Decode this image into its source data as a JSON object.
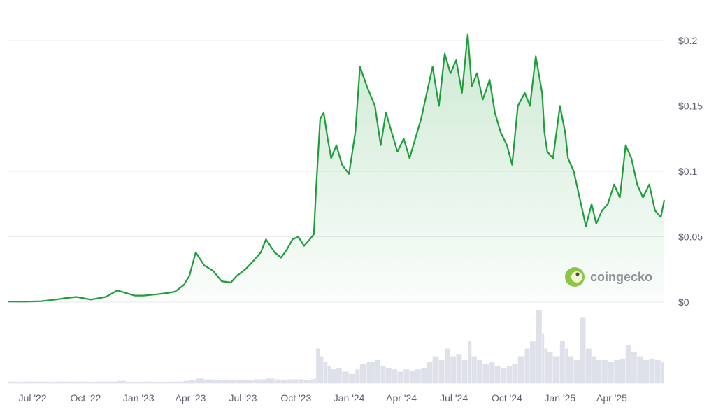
{
  "chart_data": {
    "type": "area",
    "title": "",
    "xlabel": "",
    "ylabel": "",
    "series": [
      {
        "x": [
          "2022-05-20",
          "2022-06-15",
          "2022-07-15",
          "2022-08-10",
          "2022-08-25",
          "2022-09-15",
          "2022-10-10",
          "2022-11-05",
          "2022-11-25",
          "2022-12-10",
          "2022-12-25",
          "2023-01-10",
          "2023-02-01",
          "2023-02-20",
          "2023-03-05",
          "2023-03-20",
          "2023-03-30",
          "2023-04-10",
          "2023-04-25",
          "2023-05-10",
          "2023-05-25",
          "2023-06-10",
          "2023-06-20",
          "2023-07-05",
          "2023-07-20",
          "2023-08-01",
          "2023-08-10",
          "2023-08-25",
          "2023-09-05",
          "2023-09-15",
          "2023-09-25",
          "2023-10-05",
          "2023-10-15",
          "2023-10-25",
          "2023-11-01",
          "2023-11-05",
          "2023-11-12",
          "2023-11-18",
          "2023-11-25",
          "2023-12-01",
          "2023-12-10",
          "2023-12-20",
          "2024-01-01",
          "2024-01-12",
          "2024-01-20",
          "2024-02-01",
          "2024-02-15",
          "2024-02-25",
          "2024-03-05",
          "2024-03-15",
          "2024-03-25",
          "2024-04-05",
          "2024-04-15",
          "2024-04-25",
          "2024-05-05",
          "2024-05-15",
          "2024-05-25",
          "2024-06-05",
          "2024-06-15",
          "2024-06-25",
          "2024-07-05",
          "2024-07-15",
          "2024-07-25",
          "2024-08-01",
          "2024-08-10",
          "2024-08-20",
          "2024-09-01",
          "2024-09-10",
          "2024-09-20",
          "2024-10-01",
          "2024-10-10",
          "2024-10-20",
          "2024-11-01",
          "2024-11-10",
          "2024-11-20",
          "2024-12-01",
          "2024-12-05",
          "2024-12-10",
          "2024-12-20",
          "2025-01-01",
          "2025-01-10",
          "2025-01-15",
          "2025-01-25",
          "2025-02-05",
          "2025-02-15",
          "2025-02-25",
          "2025-03-05",
          "2025-03-15",
          "2025-03-25",
          "2025-04-05",
          "2025-04-15",
          "2025-04-25",
          "2025-05-05",
          "2025-05-15",
          "2025-05-25",
          "2025-06-05",
          "2025-06-15",
          "2025-06-25",
          "2025-07-01"
        ],
        "y": [
          0.0005,
          0.0004,
          0.0007,
          0.002,
          0.003,
          0.004,
          0.002,
          0.004,
          0.009,
          0.007,
          0.005,
          0.005,
          0.006,
          0.007,
          0.008,
          0.013,
          0.02,
          0.038,
          0.028,
          0.024,
          0.016,
          0.015,
          0.02,
          0.025,
          0.032,
          0.038,
          0.048,
          0.038,
          0.034,
          0.04,
          0.048,
          0.05,
          0.043,
          0.048,
          0.052,
          0.088,
          0.14,
          0.145,
          0.125,
          0.11,
          0.12,
          0.105,
          0.098,
          0.13,
          0.18,
          0.165,
          0.15,
          0.12,
          0.145,
          0.13,
          0.115,
          0.125,
          0.11,
          0.125,
          0.14,
          0.16,
          0.18,
          0.15,
          0.19,
          0.175,
          0.185,
          0.16,
          0.205,
          0.165,
          0.175,
          0.155,
          0.17,
          0.145,
          0.13,
          0.12,
          0.105,
          0.15,
          0.16,
          0.15,
          0.188,
          0.16,
          0.13,
          0.115,
          0.11,
          0.15,
          0.13,
          0.11,
          0.1,
          0.078,
          0.058,
          0.075,
          0.06,
          0.07,
          0.075,
          0.09,
          0.08,
          0.12,
          0.11,
          0.09,
          0.08,
          0.09,
          0.07,
          0.065,
          0.078
        ]
      }
    ],
    "volume": [
      0.02,
      0.02,
      0.02,
      0.02,
      0.02,
      0.02,
      0.02,
      0.02,
      0.03,
      0.02,
      0.02,
      0.02,
      0.02,
      0.02,
      0.02,
      0.03,
      0.04,
      0.06,
      0.05,
      0.04,
      0.04,
      0.04,
      0.04,
      0.04,
      0.05,
      0.05,
      0.06,
      0.05,
      0.04,
      0.05,
      0.05,
      0.05,
      0.04,
      0.05,
      0.06,
      0.45,
      0.35,
      0.28,
      0.22,
      0.18,
      0.2,
      0.15,
      0.12,
      0.18,
      0.25,
      0.28,
      0.3,
      0.22,
      0.2,
      0.18,
      0.15,
      0.18,
      0.16,
      0.18,
      0.2,
      0.28,
      0.35,
      0.3,
      0.45,
      0.35,
      0.38,
      0.3,
      0.55,
      0.35,
      0.3,
      0.25,
      0.28,
      0.22,
      0.2,
      0.22,
      0.25,
      0.35,
      0.45,
      0.55,
      0.95,
      0.65,
      0.45,
      0.4,
      0.35,
      0.55,
      0.45,
      0.35,
      0.3,
      0.85,
      0.45,
      0.35,
      0.3,
      0.3,
      0.28,
      0.3,
      0.32,
      0.5,
      0.4,
      0.35,
      0.3,
      0.32,
      0.3,
      0.28,
      0.3
    ],
    "x_ticks": [
      {
        "label": "Jul '22",
        "date": "2022-07-01"
      },
      {
        "label": "Oct '22",
        "date": "2022-10-01"
      },
      {
        "label": "Jan '23",
        "date": "2023-01-01"
      },
      {
        "label": "Apr '23",
        "date": "2023-04-01"
      },
      {
        "label": "Jul '23",
        "date": "2023-07-01"
      },
      {
        "label": "Oct '23",
        "date": "2023-10-01"
      },
      {
        "label": "Jan '24",
        "date": "2024-01-01"
      },
      {
        "label": "Apr '24",
        "date": "2024-04-01"
      },
      {
        "label": "Jul '24",
        "date": "2024-07-01"
      },
      {
        "label": "Oct '24",
        "date": "2024-10-01"
      },
      {
        "label": "Jan '25",
        "date": "2025-01-01"
      },
      {
        "label": "Apr '25",
        "date": "2025-04-01"
      }
    ],
    "y_ticks": [
      {
        "label": "$0",
        "value": 0
      },
      {
        "label": "$0.05",
        "value": 0.05
      },
      {
        "label": "$0.1",
        "value": 0.1
      },
      {
        "label": "$0.15",
        "value": 0.15
      },
      {
        "label": "$0.2",
        "value": 0.2
      }
    ],
    "ylim": [
      0,
      0.2
    ],
    "xlim": [
      "2022-05-20",
      "2025-07-01"
    ],
    "grid": true,
    "line_color": "#1e9e3a",
    "fill_color": "#1e9e3a",
    "volume_color": "#dfe1ea",
    "watermark": "coingecko"
  }
}
